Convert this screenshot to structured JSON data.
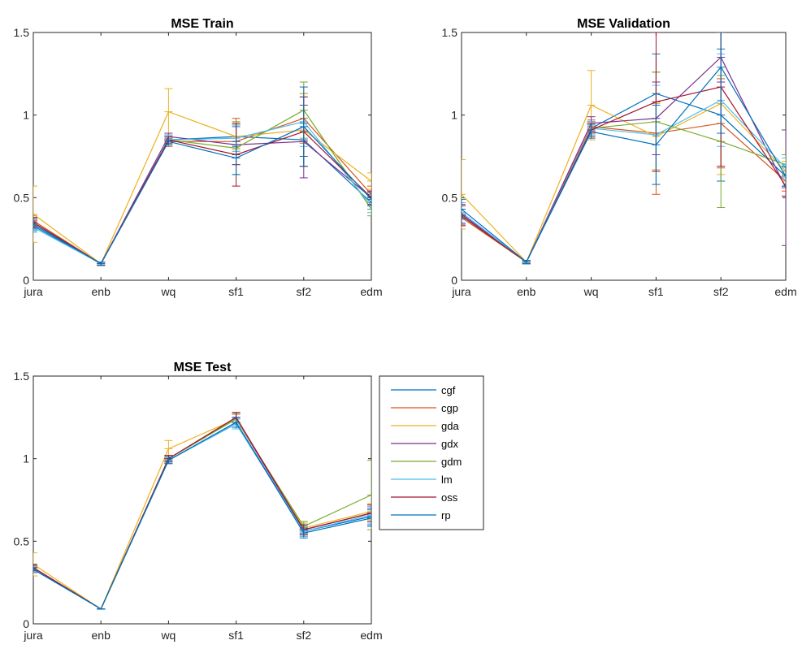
{
  "chart_data": [
    {
      "type": "line",
      "title": "MSE Train",
      "categories": [
        "jura",
        "enb",
        "wq",
        "sf1",
        "sf2",
        "edm"
      ],
      "ylim": [
        0,
        1.5
      ],
      "yticks": [
        "0",
        "0.5",
        "1",
        "1.5"
      ],
      "grid": false,
      "series": [
        {
          "name": "cgf",
          "values": [
            0.33,
            0.1,
            0.85,
            0.87,
            0.85,
            0.47
          ],
          "errors": [
            0.03,
            0.01,
            0.03,
            0.06,
            0.1,
            0.04
          ]
        },
        {
          "name": "cgp",
          "values": [
            0.36,
            0.1,
            0.84,
            0.84,
            0.98,
            0.52
          ],
          "errors": [
            0.03,
            0.01,
            0.03,
            0.14,
            0.15,
            0.05
          ]
        },
        {
          "name": "gda",
          "values": [
            0.4,
            0.1,
            1.02,
            0.87,
            0.91,
            0.6
          ],
          "errors": [
            0.17,
            0.01,
            0.14,
            0.08,
            0.22,
            0.05
          ]
        },
        {
          "name": "gdx",
          "values": [
            0.35,
            0.1,
            0.87,
            0.82,
            0.84,
            0.5
          ],
          "errors": [
            0.03,
            0.01,
            0.02,
            0.12,
            0.22,
            0.04
          ]
        },
        {
          "name": "gdm",
          "values": [
            0.34,
            0.1,
            0.85,
            0.8,
            1.03,
            0.43
          ],
          "errors": [
            0.03,
            0.01,
            0.03,
            0.16,
            0.17,
            0.04
          ]
        },
        {
          "name": "lm",
          "values": [
            0.32,
            0.1,
            0.85,
            0.86,
            0.96,
            0.45
          ],
          "errors": [
            0.03,
            0.01,
            0.03,
            0.08,
            0.15,
            0.04
          ]
        },
        {
          "name": "oss",
          "values": [
            0.35,
            0.1,
            0.85,
            0.76,
            0.9,
            0.5
          ],
          "errors": [
            0.03,
            0.01,
            0.02,
            0.19,
            0.21,
            0.04
          ]
        },
        {
          "name": "rp",
          "values": [
            0.34,
            0.1,
            0.84,
            0.74,
            0.93,
            0.49
          ],
          "errors": [
            0.03,
            0.01,
            0.02,
            0.1,
            0.24,
            0.04
          ]
        }
      ]
    },
    {
      "type": "line",
      "title": "MSE Validation",
      "categories": [
        "jura",
        "enb",
        "wq",
        "sf1",
        "sf2",
        "edm"
      ],
      "ylim": [
        0,
        1.5
      ],
      "yticks": [
        "0",
        "0.5",
        "1",
        "1.5"
      ],
      "grid": false,
      "series": [
        {
          "name": "cgf",
          "values": [
            0.4,
            0.11,
            0.92,
            1.13,
            1.0,
            0.63
          ],
          "errors": [
            0.06,
            0.01,
            0.04,
            0.24,
            0.4,
            0.06
          ]
        },
        {
          "name": "cgp",
          "values": [
            0.38,
            0.11,
            0.93,
            0.89,
            0.95,
            0.6
          ],
          "errors": [
            0.05,
            0.01,
            0.04,
            0.37,
            0.27,
            0.06
          ]
        },
        {
          "name": "gda",
          "values": [
            0.52,
            0.11,
            1.06,
            0.87,
            1.07,
            0.66
          ],
          "errors": [
            0.21,
            0.01,
            0.21,
            0.2,
            0.43,
            0.06
          ]
        },
        {
          "name": "gdx",
          "values": [
            0.4,
            0.11,
            0.95,
            0.98,
            1.35,
            0.56
          ],
          "errors": [
            0.06,
            0.01,
            0.04,
            0.22,
            0.15,
            0.35
          ]
        },
        {
          "name": "gdm",
          "values": [
            0.39,
            0.11,
            0.92,
            0.96,
            0.84,
            0.7
          ],
          "errors": [
            0.06,
            0.01,
            0.04,
            0.3,
            0.4,
            0.06
          ]
        },
        {
          "name": "lm",
          "values": [
            0.41,
            0.11,
            0.92,
            0.88,
            1.09,
            0.68
          ],
          "errors": [
            0.06,
            0.01,
            0.04,
            0.3,
            0.28,
            0.06
          ]
        },
        {
          "name": "oss",
          "values": [
            0.39,
            0.11,
            0.91,
            1.08,
            1.17,
            0.57
          ],
          "errors": [
            0.06,
            0.01,
            0.04,
            0.42,
            0.48,
            0.06
          ]
        },
        {
          "name": "rp",
          "values": [
            0.43,
            0.11,
            0.9,
            0.82,
            1.29,
            0.63
          ],
          "errors": [
            0.06,
            0.01,
            0.04,
            0.24,
            0.4,
            0.06
          ]
        }
      ]
    },
    {
      "type": "line",
      "title": "MSE Test",
      "categories": [
        "jura",
        "enb",
        "wq",
        "sf1",
        "sf2",
        "edm"
      ],
      "ylim": [
        0,
        1.5
      ],
      "yticks": [
        "0",
        "0.5",
        "1",
        "1.5"
      ],
      "grid": false,
      "legend": "right",
      "series": [
        {
          "name": "cgf",
          "values": [
            0.33,
            0.09,
            0.99,
            1.22,
            0.56,
            0.65
          ],
          "errors": [
            0.02,
            0.0,
            0.02,
            0.03,
            0.03,
            0.05
          ]
        },
        {
          "name": "cgp",
          "values": [
            0.34,
            0.09,
            1.0,
            1.25,
            0.57,
            0.67
          ],
          "errors": [
            0.02,
            0.0,
            0.02,
            0.03,
            0.03,
            0.05
          ]
        },
        {
          "name": "gda",
          "values": [
            0.36,
            0.09,
            1.06,
            1.24,
            0.58,
            0.68
          ],
          "errors": [
            0.07,
            0.0,
            0.05,
            0.03,
            0.03,
            0.05
          ]
        },
        {
          "name": "gdx",
          "values": [
            0.34,
            0.09,
            1.0,
            1.24,
            0.57,
            0.67
          ],
          "errors": [
            0.02,
            0.0,
            0.02,
            0.03,
            0.03,
            0.05
          ]
        },
        {
          "name": "gdm",
          "values": [
            0.34,
            0.09,
            1.0,
            1.24,
            0.59,
            0.78
          ],
          "errors": [
            0.02,
            0.0,
            0.02,
            0.03,
            0.03,
            0.21
          ]
        },
        {
          "name": "lm",
          "values": [
            0.33,
            0.09,
            0.99,
            1.21,
            0.56,
            0.66
          ],
          "errors": [
            0.02,
            0.0,
            0.02,
            0.03,
            0.03,
            0.05
          ]
        },
        {
          "name": "oss",
          "values": [
            0.34,
            0.09,
            1.0,
            1.25,
            0.57,
            0.67
          ],
          "errors": [
            0.02,
            0.0,
            0.02,
            0.03,
            0.03,
            0.05
          ]
        },
        {
          "name": "rp",
          "values": [
            0.33,
            0.09,
            0.99,
            1.22,
            0.55,
            0.64
          ],
          "errors": [
            0.02,
            0.0,
            0.02,
            0.03,
            0.03,
            0.05
          ]
        }
      ]
    }
  ],
  "legend": {
    "items": [
      "cgf",
      "cgp",
      "gda",
      "gdx",
      "gdm",
      "lm",
      "oss",
      "rp"
    ]
  },
  "colors": {
    "cgf": "#0072BD",
    "cgp": "#D95319",
    "gda": "#EDB120",
    "gdx": "#7E2F8E",
    "gdm": "#77AC30",
    "lm": "#4DBEEE",
    "oss": "#A2142F",
    "rp": "#0072BD"
  }
}
